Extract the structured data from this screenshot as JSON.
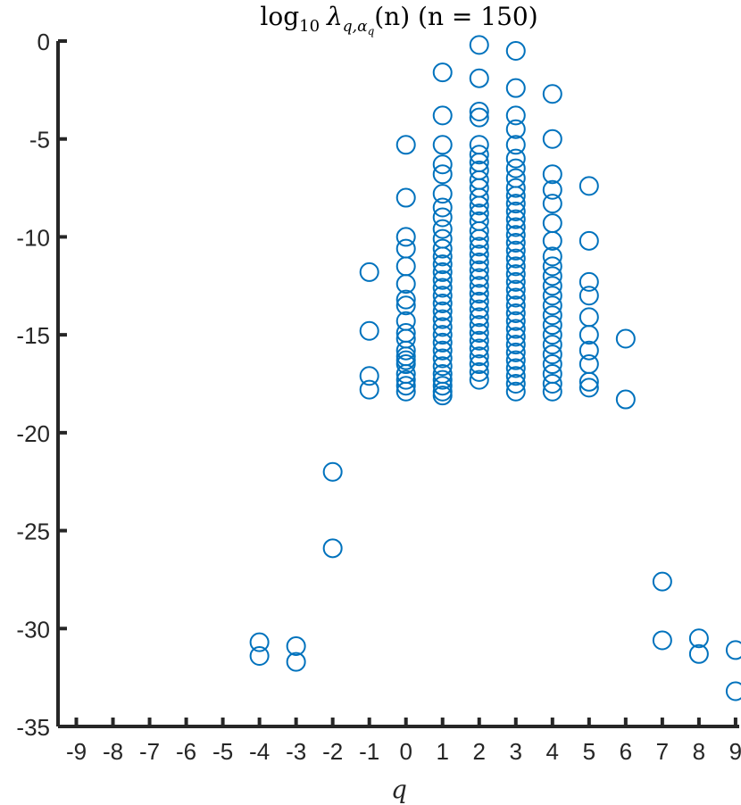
{
  "chart_data": {
    "type": "scatter",
    "title_prefix": "log",
    "title_sub": "10",
    "title_lambda": "λ",
    "title_lambda_sub": "q,α",
    "title_lambda_subsub": "q",
    "title_rest": "(n) (n = 150)",
    "xlabel": "q",
    "ylabel": "",
    "xlim": [
      -9.5,
      9.1
    ],
    "ylim": [
      -35,
      0
    ],
    "xticks": [
      -9,
      -8,
      -7,
      -6,
      -5,
      -4,
      -3,
      -2,
      -1,
      0,
      1,
      2,
      3,
      4,
      5,
      6,
      7,
      8,
      9
    ],
    "xtick_labels": [
      "-9",
      "-8",
      "-7",
      "-6",
      "-5",
      "-4",
      "-3",
      "-2",
      "-1",
      "0",
      "1",
      "2",
      "3",
      "4",
      "5",
      "6",
      "7",
      "8",
      "9"
    ],
    "yticks": [
      0,
      -5,
      -10,
      -15,
      -20,
      -25,
      -30,
      -35
    ],
    "ytick_labels": [
      "0",
      "-5",
      "-10",
      "-15",
      "-20",
      "-25",
      "-30",
      "-35"
    ],
    "grid": false,
    "marker": "circle-open",
    "color": "#0072BD",
    "series": [
      {
        "points": [
          [
            -4,
            -30.7
          ],
          [
            -4,
            -31.4
          ],
          [
            -3,
            -30.9
          ],
          [
            -3,
            -31.7
          ],
          [
            -2,
            -22.0
          ],
          [
            -2,
            -25.9
          ],
          [
            -1,
            -11.8
          ],
          [
            -1,
            -14.8
          ],
          [
            -1,
            -17.1
          ],
          [
            -1,
            -17.8
          ],
          [
            0,
            -5.3
          ],
          [
            0,
            -8.0
          ],
          [
            0,
            -10.0
          ],
          [
            0,
            -10.6
          ],
          [
            0,
            -11.5
          ],
          [
            0,
            -12.4
          ],
          [
            0,
            -13.2
          ],
          [
            0,
            -13.5
          ],
          [
            0,
            -14.3
          ],
          [
            0,
            -14.9
          ],
          [
            0,
            -15.2
          ],
          [
            0,
            -15.8
          ],
          [
            0,
            -16.1
          ],
          [
            0,
            -16.3
          ],
          [
            0,
            -16.5
          ],
          [
            0,
            -17.0
          ],
          [
            0,
            -17.3
          ],
          [
            0,
            -17.6
          ],
          [
            0,
            -17.9
          ],
          [
            1,
            -1.6
          ],
          [
            1,
            -3.8
          ],
          [
            1,
            -5.3
          ],
          [
            1,
            -6.3
          ],
          [
            1,
            -6.8
          ],
          [
            1,
            -7.8
          ],
          [
            1,
            -8.5
          ],
          [
            1,
            -9.0
          ],
          [
            1,
            -9.6
          ],
          [
            1,
            -10.1
          ],
          [
            1,
            -10.6
          ],
          [
            1,
            -11.0
          ],
          [
            1,
            -11.4
          ],
          [
            1,
            -11.8
          ],
          [
            1,
            -12.2
          ],
          [
            1,
            -12.6
          ],
          [
            1,
            -13.0
          ],
          [
            1,
            -13.4
          ],
          [
            1,
            -13.8
          ],
          [
            1,
            -14.2
          ],
          [
            1,
            -14.6
          ],
          [
            1,
            -15.0
          ],
          [
            1,
            -15.4
          ],
          [
            1,
            -15.8
          ],
          [
            1,
            -16.2
          ],
          [
            1,
            -16.6
          ],
          [
            1,
            -17.0
          ],
          [
            1,
            -17.3
          ],
          [
            1,
            -17.6
          ],
          [
            1,
            -17.9
          ],
          [
            1,
            -18.1
          ],
          [
            2,
            -0.2
          ],
          [
            2,
            -1.9
          ],
          [
            2,
            -3.6
          ],
          [
            2,
            -3.9
          ],
          [
            2,
            -5.3
          ],
          [
            2,
            -5.8
          ],
          [
            2,
            -6.2
          ],
          [
            2,
            -6.6
          ],
          [
            2,
            -7.1
          ],
          [
            2,
            -7.5
          ],
          [
            2,
            -8.0
          ],
          [
            2,
            -8.4
          ],
          [
            2,
            -8.8
          ],
          [
            2,
            -9.2
          ],
          [
            2,
            -9.7
          ],
          [
            2,
            -10.1
          ],
          [
            2,
            -10.5
          ],
          [
            2,
            -10.9
          ],
          [
            2,
            -11.3
          ],
          [
            2,
            -11.7
          ],
          [
            2,
            -12.1
          ],
          [
            2,
            -12.5
          ],
          [
            2,
            -12.9
          ],
          [
            2,
            -13.3
          ],
          [
            2,
            -13.7
          ],
          [
            2,
            -14.1
          ],
          [
            2,
            -14.5
          ],
          [
            2,
            -14.9
          ],
          [
            2,
            -15.3
          ],
          [
            2,
            -15.7
          ],
          [
            2,
            -16.1
          ],
          [
            2,
            -16.5
          ],
          [
            2,
            -16.9
          ],
          [
            2,
            -17.3
          ],
          [
            3,
            -0.5
          ],
          [
            3,
            -2.4
          ],
          [
            3,
            -3.8
          ],
          [
            3,
            -4.5
          ],
          [
            3,
            -5.3
          ],
          [
            3,
            -6.0
          ],
          [
            3,
            -6.5
          ],
          [
            3,
            -7.0
          ],
          [
            3,
            -7.5
          ],
          [
            3,
            -7.9
          ],
          [
            3,
            -8.3
          ],
          [
            3,
            -8.7
          ],
          [
            3,
            -9.1
          ],
          [
            3,
            -9.5
          ],
          [
            3,
            -9.9
          ],
          [
            3,
            -10.3
          ],
          [
            3,
            -10.7
          ],
          [
            3,
            -11.1
          ],
          [
            3,
            -11.5
          ],
          [
            3,
            -11.9
          ],
          [
            3,
            -12.3
          ],
          [
            3,
            -12.7
          ],
          [
            3,
            -13.1
          ],
          [
            3,
            -13.5
          ],
          [
            3,
            -13.9
          ],
          [
            3,
            -14.3
          ],
          [
            3,
            -14.7
          ],
          [
            3,
            -15.1
          ],
          [
            3,
            -15.5
          ],
          [
            3,
            -15.9
          ],
          [
            3,
            -16.3
          ],
          [
            3,
            -16.7
          ],
          [
            3,
            -17.1
          ],
          [
            3,
            -17.5
          ],
          [
            3,
            -17.9
          ],
          [
            4,
            -2.7
          ],
          [
            4,
            -5.0
          ],
          [
            4,
            -6.8
          ],
          [
            4,
            -7.6
          ],
          [
            4,
            -8.3
          ],
          [
            4,
            -9.3
          ],
          [
            4,
            -10.2
          ],
          [
            4,
            -11.0
          ],
          [
            4,
            -11.5
          ],
          [
            4,
            -12.0
          ],
          [
            4,
            -12.5
          ],
          [
            4,
            -13.0
          ],
          [
            4,
            -13.5
          ],
          [
            4,
            -14.0
          ],
          [
            4,
            -14.5
          ],
          [
            4,
            -15.0
          ],
          [
            4,
            -15.5
          ],
          [
            4,
            -16.0
          ],
          [
            4,
            -16.5
          ],
          [
            4,
            -17.0
          ],
          [
            4,
            -17.5
          ],
          [
            4,
            -17.9
          ],
          [
            5,
            -7.4
          ],
          [
            5,
            -10.2
          ],
          [
            5,
            -12.3
          ],
          [
            5,
            -13.0
          ],
          [
            5,
            -14.1
          ],
          [
            5,
            -15.0
          ],
          [
            5,
            -15.8
          ],
          [
            5,
            -16.5
          ],
          [
            5,
            -17.4
          ],
          [
            5,
            -17.7
          ],
          [
            6,
            -15.2
          ],
          [
            6,
            -18.3
          ],
          [
            7,
            -27.6
          ],
          [
            7,
            -30.6
          ],
          [
            8,
            -30.5
          ],
          [
            8,
            -31.3
          ],
          [
            9,
            -31.1
          ],
          [
            9,
            -33.2
          ]
        ]
      }
    ]
  }
}
